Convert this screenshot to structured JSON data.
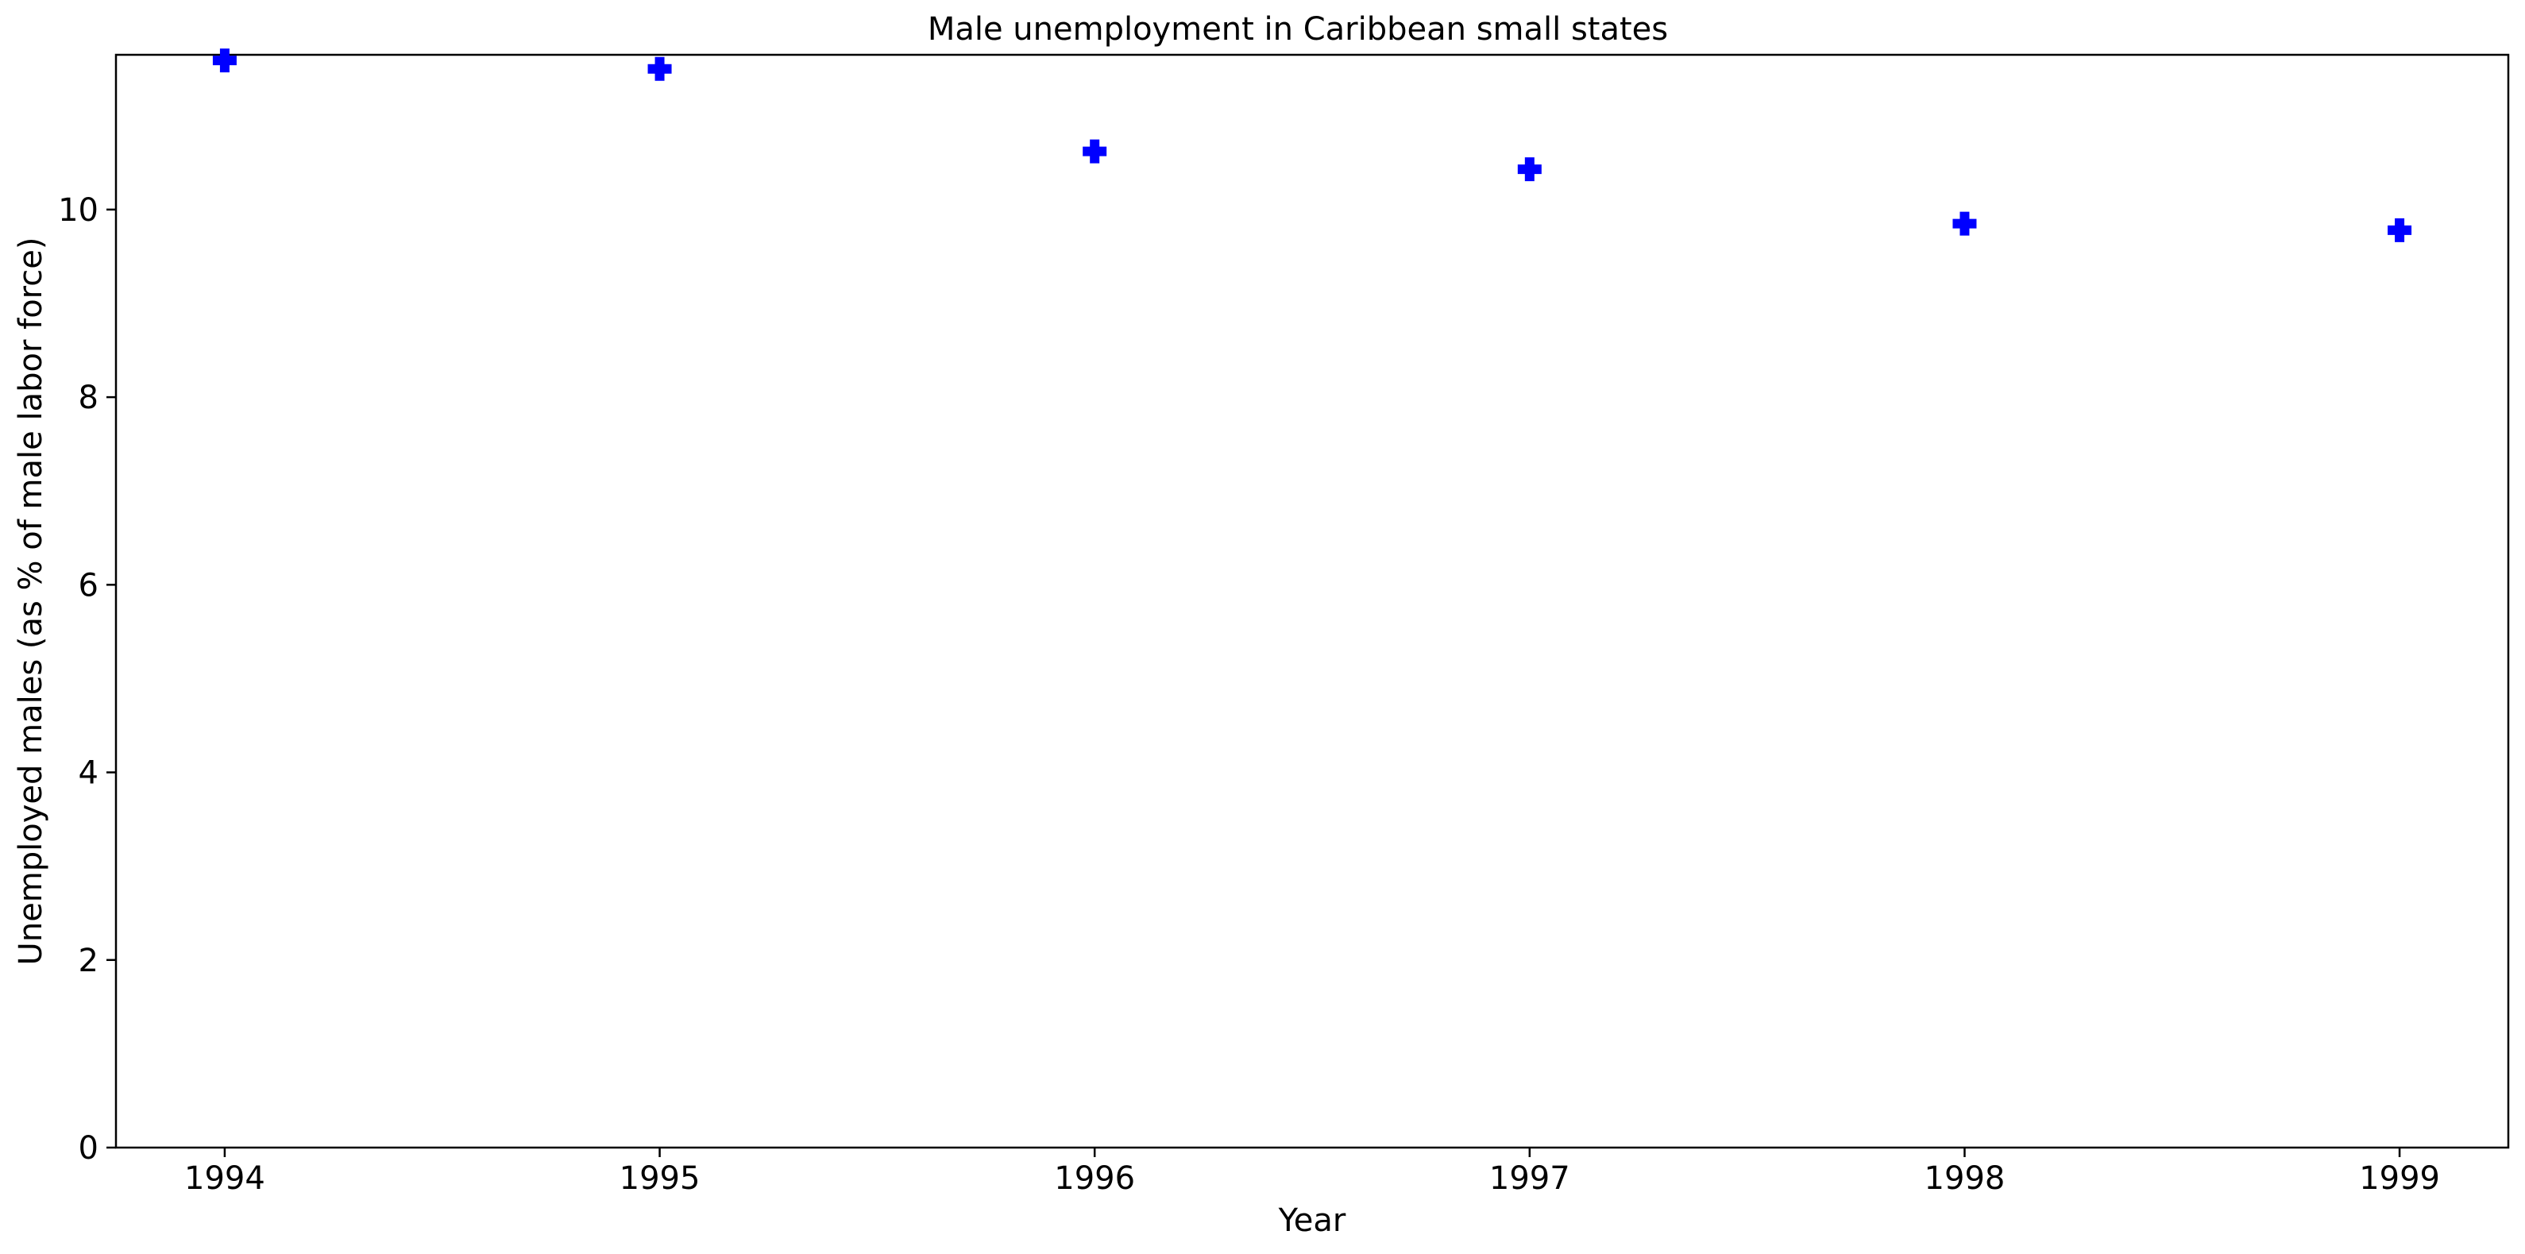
{
  "chart_data": {
    "type": "scatter",
    "title": "Male unemployment in Caribbean small states",
    "xlabel": "Year",
    "ylabel": "Unemployed males (as % of male labor force)",
    "x": [
      1994,
      1995,
      1996,
      1997,
      1998,
      1999
    ],
    "x_tick_labels": [
      "1994",
      "1995",
      "1996",
      "1997",
      "1998",
      "1999"
    ],
    "y_ticks": [
      0,
      2,
      4,
      6,
      8,
      10
    ],
    "y_tick_labels": [
      "0",
      "2",
      "4",
      "6",
      "8",
      "10"
    ],
    "series": [
      {
        "values": [
          11.59,
          11.5,
          10.62,
          10.43,
          9.85,
          9.78
        ],
        "color": "#0000ff",
        "marker": "plus-filled"
      }
    ],
    "xlim": [
      1993.75,
      1999.25
    ],
    "ylim": [
      0,
      11.65
    ],
    "grid": false,
    "legend": "none"
  }
}
